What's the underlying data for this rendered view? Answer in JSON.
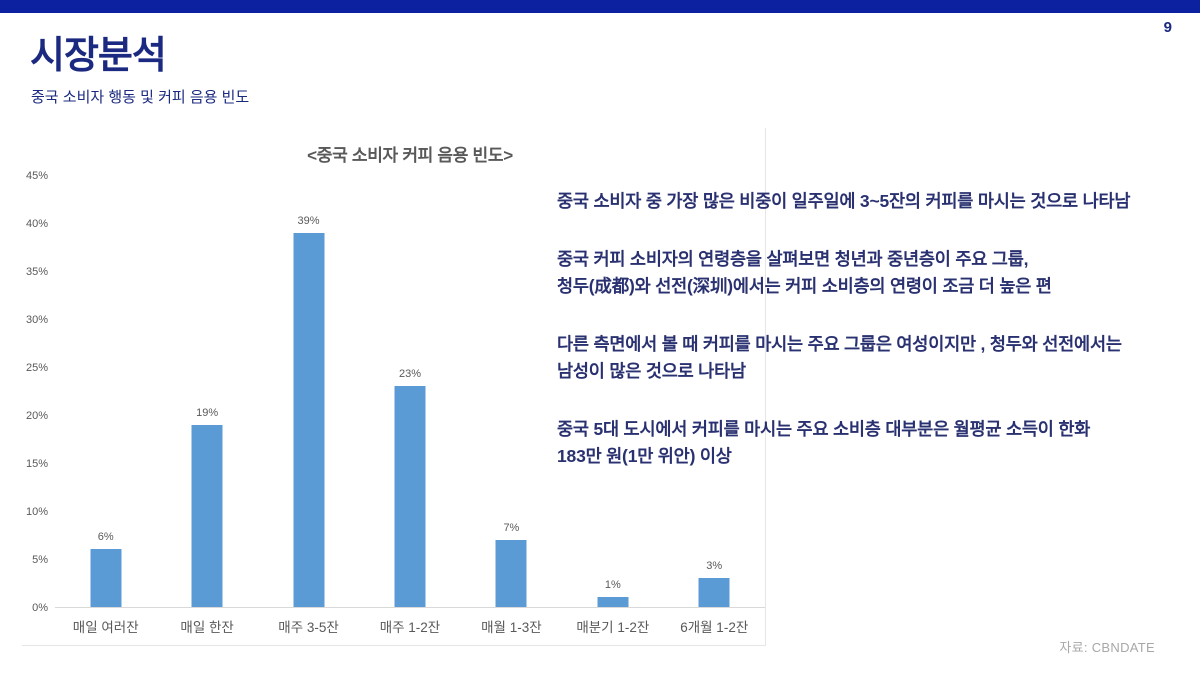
{
  "page": {
    "number": "9"
  },
  "header": {
    "title": "시장분석",
    "subtitle": "중국 소비자 행동 및 커피 음용 빈도"
  },
  "insights": [
    "중국 소비자 중 가장 많은 비중이 일주일에 3~5잔의 커피를 마시는 것으로 나타남",
    " 중국 커피 소비자의 연령층을 살펴보면 청년과 중년층이 주요 그룹,\n청두(成都)와 선전(深圳)에서는 커피 소비층의 연령이 조금 더 높은 편",
    " 다른 측면에서 볼 때 커피를 마시는 주요 그룹은 여성이지만 , 청두와 선전에서는\n남성이 많은 것으로 나타남",
    " 중국 5대 도시에서 커피를 마시는 주요 소비층 대부분은 월평균 소득이 한화\n183만 원(1만 위안) 이상"
  ],
  "source": "자료: CBNDATE",
  "chart_data": {
    "type": "bar",
    "title": "<중국 소비자 커피 음용 빈도>",
    "categories": [
      "매일 여러잔",
      "매일 한잔",
      "매주 3-5잔",
      "매주 1-2잔",
      "매월 1-3잔",
      "매분기 1-2잔",
      "6개월 1-2잔"
    ],
    "values": [
      6,
      19,
      39,
      23,
      7,
      1,
      3
    ],
    "value_labels": [
      "6%",
      "19%",
      "39%",
      "23%",
      "7%",
      "1%",
      "3%"
    ],
    "y_ticks": [
      "0%",
      "5%",
      "10%",
      "15%",
      "20%",
      "25%",
      "30%",
      "35%",
      "40%",
      "45%"
    ],
    "ylim": [
      0,
      45
    ],
    "xlabel": "",
    "ylabel": "",
    "grid": false,
    "legend": "none",
    "bar_color": "#5b9bd5"
  },
  "colors": {
    "top_bar": "#0b21a0",
    "title_navy": "#1b2a80",
    "body_navy": "#2a3170",
    "bar_blue": "#5b9bd5",
    "chart_gray": "#595959",
    "source_gray": "#a8a8a8"
  }
}
